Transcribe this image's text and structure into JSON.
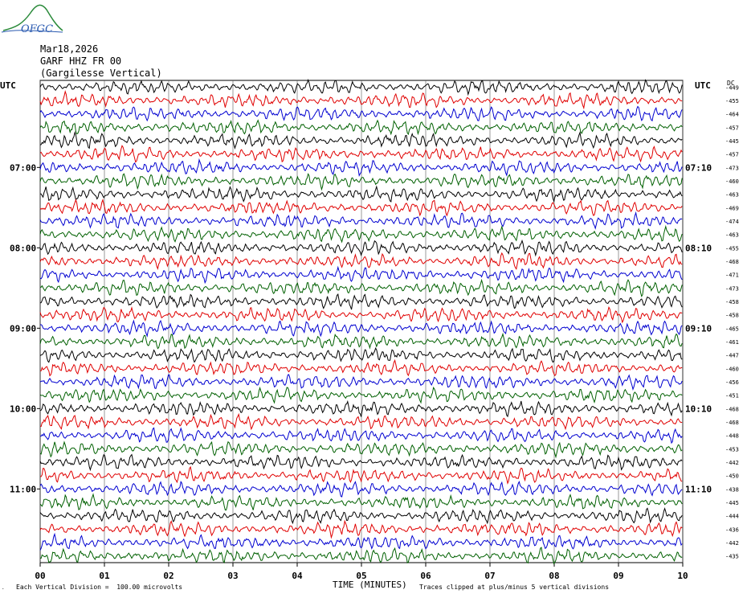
{
  "header": {
    "logo_text": "OFGC",
    "date": "Mar18,2026",
    "station": "GARF HHZ FR 00",
    "location": "(Gargilesse Vertical)"
  },
  "footer": {
    "scale_note": "Each Vertical Division =  100.00 microvolts",
    "xlabel": "TIME (MINUTES)",
    "clip_note": "Traces clipped at plus/minus 5 vertical divisions"
  },
  "colors": {
    "trace_cycle": [
      "#000000",
      "#e00000",
      "#0000d0",
      "#006000"
    ],
    "grid": "#000000"
  },
  "chart_data": {
    "type": "line",
    "title": "",
    "xlabel": "TIME (MINUTES)",
    "left_axis_label": "UTC",
    "right_axis_label": "UTC",
    "dc_label": "DC",
    "xlim": [
      0,
      10
    ],
    "x_ticks": [
      "00",
      "01",
      "02",
      "03",
      "04",
      "05",
      "06",
      "07",
      "08",
      "09",
      "10"
    ],
    "rows_per_hour": 6,
    "row_count": 36,
    "start_time": "06:00",
    "left_hour_labels": [
      {
        "row": 6,
        "label": "07:00"
      },
      {
        "row": 12,
        "label": "08:00"
      },
      {
        "row": 18,
        "label": "09:00"
      },
      {
        "row": 24,
        "label": "10:00"
      },
      {
        "row": 30,
        "label": "11:00"
      }
    ],
    "right_hour_labels": [
      {
        "row": 6,
        "label": "07:10"
      },
      {
        "row": 12,
        "label": "08:10"
      },
      {
        "row": 18,
        "label": "09:10"
      },
      {
        "row": 24,
        "label": "10:10"
      },
      {
        "row": 30,
        "label": "11:10"
      }
    ],
    "dc_offsets": [
      -449,
      -455,
      -464,
      -457,
      -445,
      -457,
      -473,
      -460,
      -463,
      -469,
      -474,
      -463,
      -455,
      -468,
      -471,
      -473,
      -458,
      -458,
      -465,
      -461,
      -447,
      -460,
      -456,
      -451,
      -468,
      -468,
      -448,
      -453,
      -442,
      -450,
      -438,
      -445,
      -444,
      -436,
      -442,
      -435
    ],
    "trace_amplitude_divisions": 0.9,
    "clip_divisions": 5,
    "vertical_division_microvolts": 100.0
  }
}
